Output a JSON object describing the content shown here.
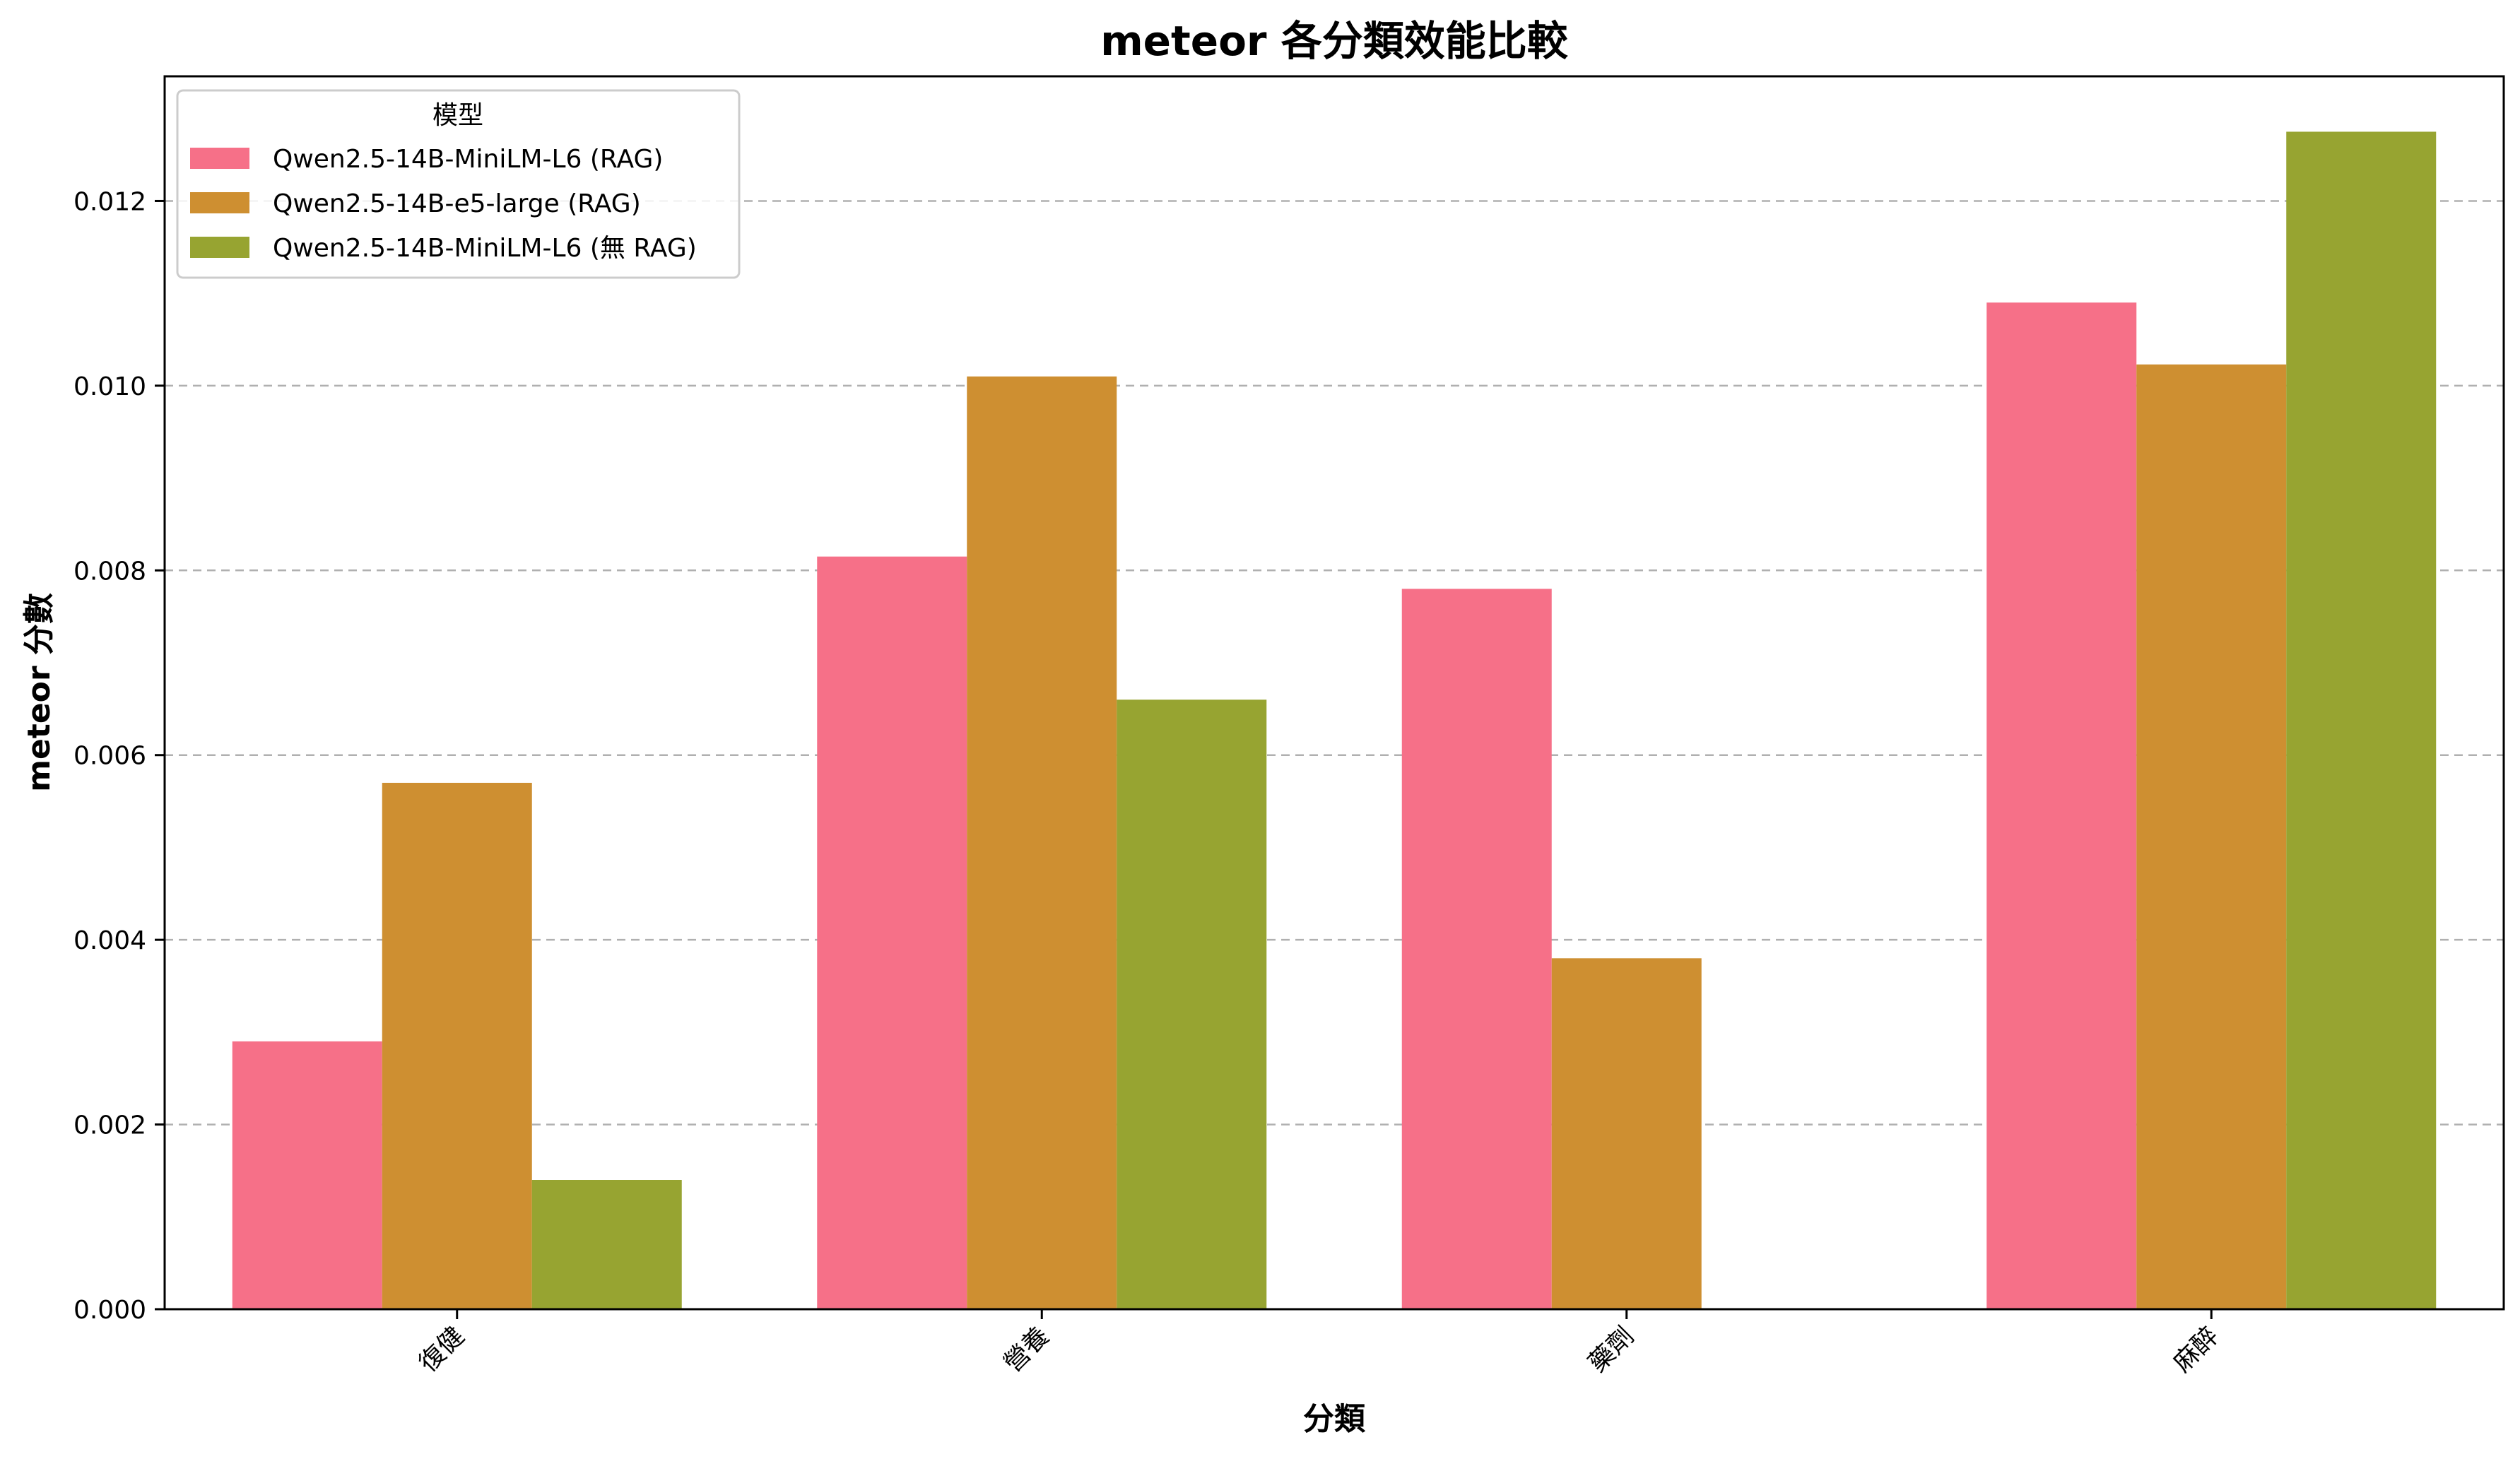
{
  "chart_data": {
    "type": "bar",
    "title": "meteor 各分類效能比較",
    "xlabel": "分類",
    "ylabel": "meteor 分數",
    "categories": [
      "復健",
      "營養",
      "藥劑",
      "麻醉"
    ],
    "ylim": [
      0,
      0.01335
    ],
    "yticks": [
      "0.000",
      "0.002",
      "0.004",
      "0.006",
      "0.008",
      "0.010",
      "0.012"
    ],
    "grid": "y-dashed",
    "legend": {
      "title": "模型",
      "placement": "top-left"
    },
    "series": [
      {
        "name": "Qwen2.5-14B-MiniLM-L6 (RAG)",
        "color": "#f67088",
        "values": [
          0.0029,
          0.00815,
          0.0078,
          0.0109
        ]
      },
      {
        "name": "Qwen2.5-14B-e5-large (RAG)",
        "color": "#ce8f31",
        "values": [
          0.0057,
          0.0101,
          0.0038,
          0.01023
        ]
      },
      {
        "name": "Qwen2.5-14B-MiniLM-L6 (無 RAG)",
        "color": "#97a431",
        "values": [
          0.0014,
          0.0066,
          0,
          0.01275
        ]
      }
    ]
  }
}
